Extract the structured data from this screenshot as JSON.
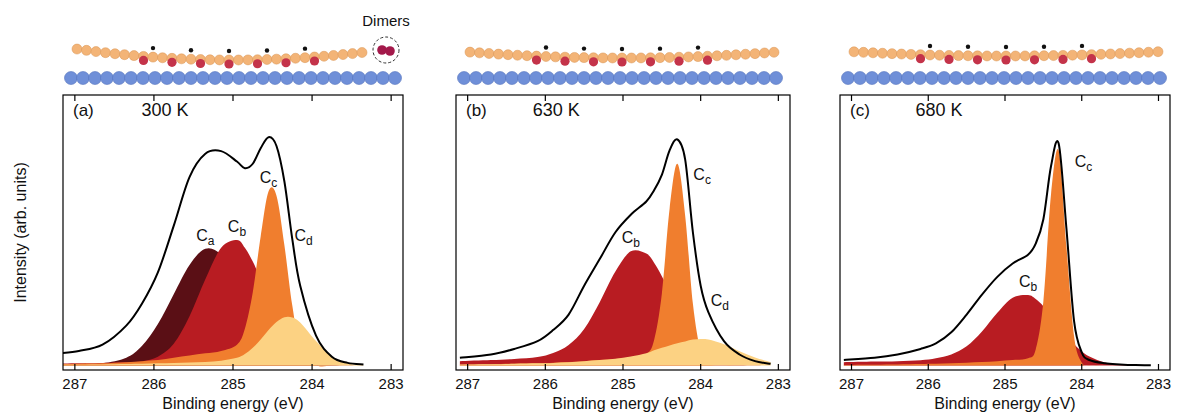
{
  "chart_data": [
    {
      "type": "area",
      "title": "300 K",
      "panel_label": "(a)",
      "annotations": [
        "Dimers"
      ],
      "x_label": "Binding energy (eV)",
      "y_label": "Intensity (arb. units)",
      "x": [
        287.35,
        286.95,
        286.65,
        286.35,
        286.15,
        285.95,
        285.75,
        285.55,
        285.35,
        285.15,
        284.95,
        284.85,
        284.75,
        284.65,
        284.55,
        284.45,
        284.35,
        284.25,
        284.15,
        283.95,
        283.75,
        283.55,
        283.35
      ],
      "series": [
        {
          "name": "Ca",
          "type": "area",
          "color": "#5a0f15",
          "values": [
            0.005,
            0.006,
            0.01,
            0.035,
            0.089,
            0.187,
            0.322,
            0.454,
            0.527,
            0.501,
            0.392,
            0.322,
            0.251,
            0.187,
            0.132,
            0.089,
            0.057,
            0.035,
            0.02,
            0.006,
            0.001,
            0,
            0
          ]
        },
        {
          "name": "Cb",
          "type": "area",
          "color": "#b81c22",
          "values": [
            0.008,
            0.01,
            0.012,
            0.016,
            0.02,
            0.04,
            0.098,
            0.222,
            0.389,
            0.531,
            0.566,
            0.531,
            0.469,
            0.389,
            0.303,
            0.222,
            0.152,
            0.098,
            0.059,
            0.018,
            0.004,
            0.001,
            0
          ]
        },
        {
          "name": "Cc",
          "type": "area",
          "color": "#f07e2e",
          "values": [
            0.005,
            0.008,
            0.01,
            0.015,
            0.02,
            0.025,
            0.035,
            0.045,
            0.055,
            0.066,
            0.094,
            0.166,
            0.331,
            0.582,
            0.786,
            0.766,
            0.542,
            0.271,
            0.096,
            0.004,
            0,
            0,
            0
          ]
        },
        {
          "name": "Cd",
          "type": "area",
          "color": "#fcd283",
          "values": [
            0.003,
            0.004,
            0.005,
            0.007,
            0.008,
            0.01,
            0.012,
            0.014,
            0.016,
            0.022,
            0.035,
            0.052,
            0.08,
            0.118,
            0.16,
            0.196,
            0.218,
            0.217,
            0.194,
            0.111,
            0.041,
            0.01,
            0.001
          ]
        },
        {
          "type": "line",
          "color": "#000000",
          "line_style": "solid",
          "values": [
            0.05,
            0.066,
            0.094,
            0.18,
            0.28,
            0.42,
            0.63,
            0.85,
            0.955,
            0.967,
            0.92,
            0.89,
            0.91,
            0.98,
            1.03,
            0.99,
            0.83,
            0.57,
            0.36,
            0.135,
            0.04,
            0.012,
            0.005
          ]
        }
      ],
      "xlim": [
        287.15,
        282.85
      ],
      "ylim": [
        -0.02,
        1.22
      ],
      "xticks": [
        287,
        286,
        285,
        284,
        283
      ],
      "tick_labels": "x",
      "grid": false
    },
    {
      "type": "area",
      "title": "630 K",
      "panel_label": "(b)",
      "x_label": "Binding energy (eV)",
      "x": [
        287.1,
        286.7,
        286.4,
        286.1,
        285.9,
        285.7,
        285.5,
        285.3,
        285.1,
        284.9,
        284.7,
        284.6,
        284.5,
        284.4,
        284.3,
        284.2,
        284.1,
        284.0,
        283.9,
        283.7,
        283.5,
        283.3,
        283.1
      ],
      "series": [
        {
          "name": "Cb",
          "type": "area",
          "color": "#b81c22",
          "values": [
            0.02,
            0.025,
            0.03,
            0.039,
            0.057,
            0.093,
            0.165,
            0.286,
            0.423,
            0.515,
            0.505,
            0.464,
            0.403,
            0.331,
            0.256,
            0.188,
            0.13,
            0.085,
            0.053,
            0.017,
            0.004,
            0.001,
            0
          ]
        },
        {
          "name": "Cc",
          "type": "area",
          "color": "#f07e2e",
          "values": [
            0.004,
            0.006,
            0.008,
            0.01,
            0.013,
            0.016,
            0.02,
            0.025,
            0.03,
            0.038,
            0.053,
            0.114,
            0.324,
            0.707,
            0.91,
            0.677,
            0.279,
            0.064,
            0.008,
            0,
            0,
            0,
            0
          ]
        },
        {
          "name": "Cd",
          "type": "area",
          "color": "#fcd283",
          "values": [
            0.005,
            0.006,
            0.008,
            0.01,
            0.012,
            0.015,
            0.02,
            0.025,
            0.031,
            0.041,
            0.056,
            0.069,
            0.08,
            0.091,
            0.101,
            0.109,
            0.117,
            0.12,
            0.117,
            0.096,
            0.065,
            0.036,
            0.016
          ]
        },
        {
          "type": "line",
          "color": "#000000",
          "line_style": "solid",
          "values": [
            0.035,
            0.05,
            0.075,
            0.11,
            0.16,
            0.23,
            0.36,
            0.48,
            0.6,
            0.68,
            0.74,
            0.79,
            0.86,
            0.97,
            1.02,
            0.93,
            0.6,
            0.36,
            0.24,
            0.11,
            0.05,
            0.02,
            0.008
          ]
        }
      ],
      "xlim": [
        287.15,
        282.85
      ],
      "ylim": [
        -0.02,
        1.22
      ],
      "xticks": [
        287,
        286,
        285,
        284,
        283
      ],
      "tick_labels": "x",
      "grid": false
    },
    {
      "type": "area",
      "title": "680 K",
      "panel_label": "(c)",
      "x_label": "Binding energy (eV)",
      "x": [
        287.1,
        286.7,
        286.4,
        286.1,
        285.9,
        285.7,
        285.5,
        285.3,
        285.1,
        284.9,
        284.7,
        284.6,
        284.5,
        284.4,
        284.3,
        284.2,
        284.1,
        284.0,
        283.9,
        283.7,
        283.5,
        283.3,
        283.1
      ],
      "series": [
        {
          "name": "Cb",
          "type": "area",
          "color": "#b81c22",
          "values": [
            0.015,
            0.018,
            0.02,
            0.024,
            0.033,
            0.05,
            0.087,
            0.154,
            0.238,
            0.306,
            0.318,
            0.3,
            0.268,
            0.226,
            0.18,
            0.136,
            0.096,
            0.065,
            0.041,
            0.014,
            0.004,
            0.001,
            0
          ]
        },
        {
          "name": "Cc",
          "type": "area",
          "color": "#f07e2e",
          "values": [
            0.003,
            0.004,
            0.005,
            0.007,
            0.008,
            0.01,
            0.013,
            0.016,
            0.02,
            0.025,
            0.033,
            0.073,
            0.29,
            0.774,
            0.969,
            0.538,
            0.132,
            0.014,
            0.001,
            0,
            0,
            0,
            0
          ]
        },
        {
          "type": "line",
          "color": "#000000",
          "line_style": "solid",
          "values": [
            0.025,
            0.035,
            0.05,
            0.075,
            0.1,
            0.15,
            0.23,
            0.32,
            0.4,
            0.46,
            0.5,
            0.55,
            0.66,
            0.9,
            1.0,
            0.62,
            0.2,
            0.06,
            0.025,
            0.01,
            0.005,
            0.002,
            0.001
          ]
        }
      ],
      "xlim": [
        287.15,
        282.85
      ],
      "ylim": [
        -0.02,
        1.22
      ],
      "xticks": [
        287,
        286,
        285,
        284,
        283
      ],
      "tick_labels": "x",
      "grid": false
    }
  ]
}
